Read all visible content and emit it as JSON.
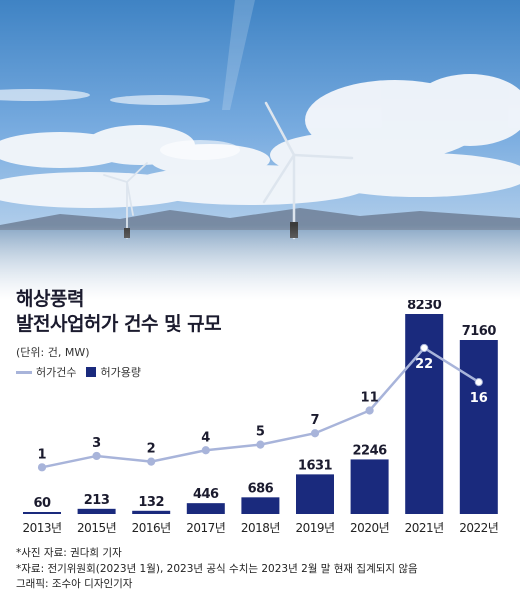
{
  "title_line1": "해상풍력",
  "title_line2": "발전사업허가 건수 및 규모",
  "unit_label": "(단위: 건, MW)",
  "legend": {
    "count_label": "허가건수",
    "capacity_label": "허가용량"
  },
  "colors": {
    "bar": "#1a2a7d",
    "line": "#a8b4da",
    "bar_label": "#1b1b2e",
    "bar_label_inside": "#ffffff"
  },
  "chart_data": {
    "type": "bar",
    "categories": [
      "2013년",
      "2015년",
      "2016년",
      "2017년",
      "2018년",
      "2019년",
      "2020년",
      "2021년",
      "2022년"
    ],
    "series": [
      {
        "name": "허가용량",
        "type": "bar",
        "values": [
          60,
          213,
          132,
          446,
          686,
          1631,
          2246,
          8230,
          7160
        ]
      },
      {
        "name": "허가건수",
        "type": "line",
        "values": [
          1,
          3,
          2,
          4,
          5,
          7,
          11,
          22,
          16
        ]
      }
    ],
    "ylim": [
      0,
      8230
    ],
    "grid": false,
    "legend_position": "top-left"
  },
  "footnotes": {
    "photo_credit": "*사진 자료: 권다희 기자",
    "source": "*자료: 전기위원회(2023년 1월), 2023년 공식 수치는 2023년 2월 말 현재 집계되지 않음",
    "graphic_credit": "그래픽: 조수아 디자인기자"
  }
}
